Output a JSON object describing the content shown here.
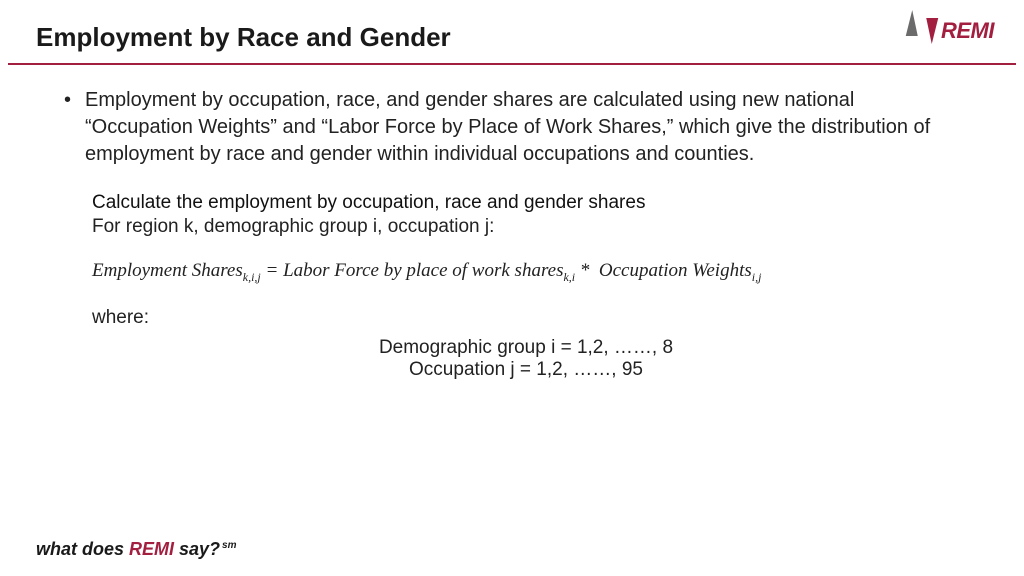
{
  "colors": {
    "accent": "#a31f40",
    "text": "#222222",
    "logo_gray": "#6b6b6b",
    "background": "#ffffff"
  },
  "header": {
    "title": "Employment by Race and Gender",
    "logo_text": "REMI"
  },
  "body": {
    "bullet": "Employment by occupation, race, and gender shares are calculated using new national “Occupation Weights” and “Labor Force by Place of Work Shares,” which give the distribution of employment by race and gender within individual occupations and counties.",
    "subheading": "Calculate the employment by occupation, race and gender shares",
    "subtext": "For region k, demographic group i, occupation j:",
    "formula": {
      "lhs": "Employment Shares",
      "lhs_sub": "k,i,j",
      "rhs1": "Labor Force by place of work shares",
      "rhs1_sub": "k,i",
      "op": " * ",
      "rhs2": "Occupation Weights",
      "rhs2_sub": "i,j"
    },
    "where_label": "where:",
    "def1": "Demographic group i = 1,2, ……, 8",
    "def2": "Occupation j = 1,2, ……, 95"
  },
  "footer": {
    "pre": "what does ",
    "brand": "REMI",
    "post": " say?",
    "mark": "sm"
  }
}
